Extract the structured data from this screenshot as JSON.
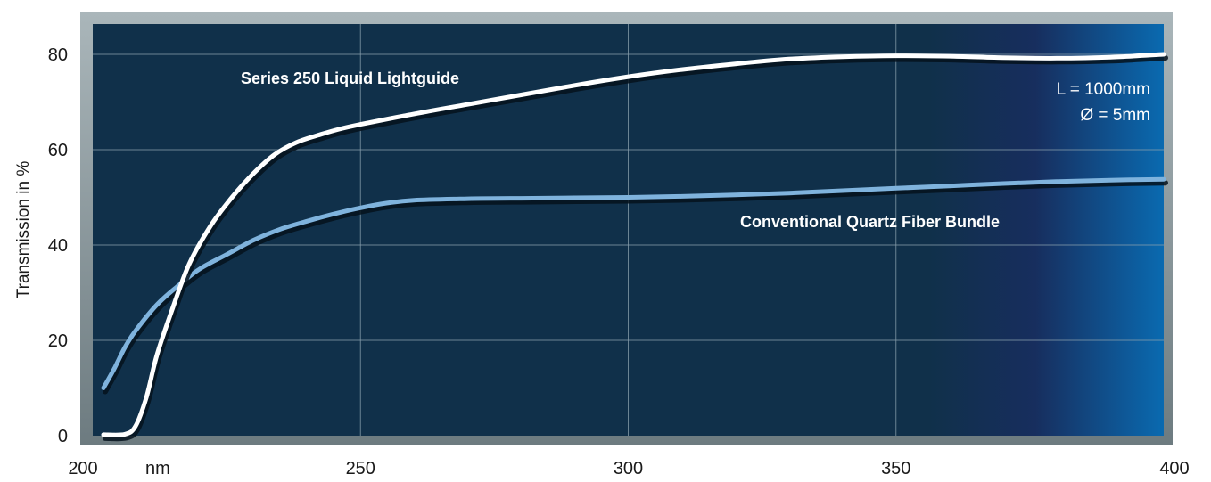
{
  "chart_data": {
    "type": "line",
    "title": "",
    "xlabel": "nm",
    "ylabel": "Transmission in %",
    "xlim": [
      200,
      400
    ],
    "ylim": [
      0,
      82
    ],
    "x_ticks": [
      200,
      250,
      300,
      350,
      400
    ],
    "y_ticks": [
      0,
      20,
      40,
      60,
      80
    ],
    "grid": true,
    "annotations": [
      "L = 1000mm",
      "Ø = 5mm"
    ],
    "series": [
      {
        "name": "Series 250 Liquid Lightguide",
        "color": "#ffffff",
        "points": [
          [
            202,
            0.2
          ],
          [
            206,
            0.3
          ],
          [
            208,
            2
          ],
          [
            210,
            8
          ],
          [
            212,
            17
          ],
          [
            215,
            27
          ],
          [
            218,
            36
          ],
          [
            222,
            44
          ],
          [
            226,
            50
          ],
          [
            230,
            55
          ],
          [
            234,
            59
          ],
          [
            238,
            61.5
          ],
          [
            242,
            63
          ],
          [
            246,
            64.3
          ],
          [
            250,
            65.3
          ],
          [
            260,
            67.5
          ],
          [
            270,
            69.5
          ],
          [
            280,
            71.5
          ],
          [
            290,
            73.5
          ],
          [
            300,
            75.3
          ],
          [
            310,
            76.8
          ],
          [
            320,
            78
          ],
          [
            330,
            79
          ],
          [
            340,
            79.5
          ],
          [
            350,
            79.7
          ],
          [
            360,
            79.6
          ],
          [
            370,
            79.3
          ],
          [
            380,
            79.2
          ],
          [
            390,
            79.4
          ],
          [
            400,
            80
          ]
        ]
      },
      {
        "name": "Conventional Quartz Fiber Bundle",
        "color": "#7fb3dd",
        "points": [
          [
            202,
            10
          ],
          [
            204,
            14
          ],
          [
            206,
            18.5
          ],
          [
            208,
            22
          ],
          [
            212,
            27.5
          ],
          [
            216,
            31.5
          ],
          [
            220,
            35
          ],
          [
            225,
            38
          ],
          [
            230,
            41
          ],
          [
            235,
            43.3
          ],
          [
            240,
            45
          ],
          [
            245,
            46.5
          ],
          [
            250,
            47.8
          ],
          [
            255,
            48.8
          ],
          [
            260,
            49.4
          ],
          [
            270,
            49.7
          ],
          [
            280,
            49.8
          ],
          [
            290,
            49.9
          ],
          [
            300,
            50
          ],
          [
            310,
            50.2
          ],
          [
            320,
            50.5
          ],
          [
            330,
            50.9
          ],
          [
            340,
            51.4
          ],
          [
            350,
            51.9
          ],
          [
            360,
            52.4
          ],
          [
            370,
            52.9
          ],
          [
            380,
            53.3
          ],
          [
            390,
            53.6
          ],
          [
            400,
            53.8
          ]
        ]
      }
    ]
  }
}
